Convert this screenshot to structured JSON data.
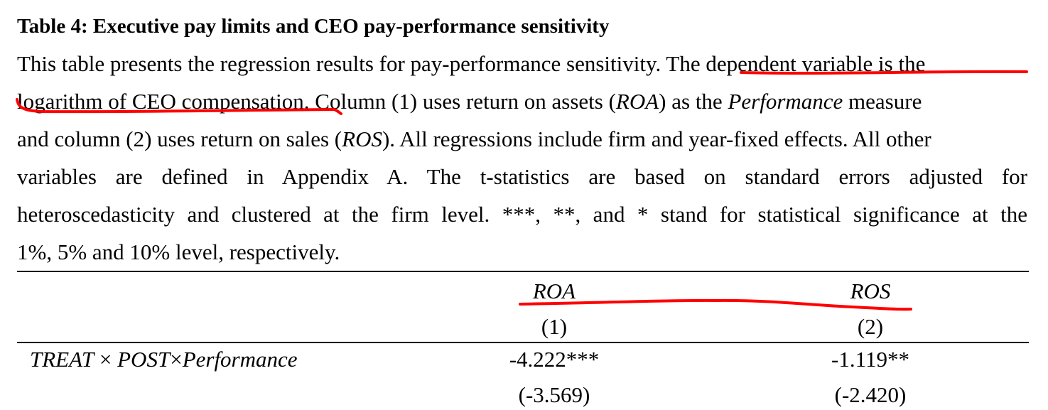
{
  "table": {
    "title": "Table 4: Executive pay limits and CEO pay-performance sensitivity",
    "caption": {
      "line1_a": "This table presents the regression results for pay-performance sensitivity. ",
      "line1_b": "The dependent variable is the",
      "line2_a": "logarithm of CEO compensation.",
      "line2_b": " Column (1) uses return on assets (",
      "line2_c": "ROA",
      "line2_d": ") as the ",
      "line2_e": "Performance",
      "line2_f": " measure",
      "line3_a": "and column (2) uses return on sales (",
      "line3_b": "ROS",
      "line3_c": "). All regressions include firm and year-fixed effects. All other",
      "line4": "variables are defined in Appendix A. The t-statistics are based on standard errors adjusted for",
      "line5": "heteroscedasticity and clustered at the firm level. ***, **, and * stand for statistical significance at the",
      "line6": "1%, 5% and 10% level, respectively."
    },
    "columns": [
      {
        "header": "ROA",
        "number": "(1)"
      },
      {
        "header": "ROS",
        "number": "(2)"
      }
    ],
    "rows": [
      {
        "label_a": "TREAT",
        "label_times1": " × ",
        "label_b": "POST",
        "label_times2": "×",
        "label_c": "Performance",
        "values": [
          "-4.222***",
          "-1.119**"
        ],
        "tstats": [
          "(-3.569)",
          "(-2.420)"
        ]
      }
    ]
  },
  "annotations": {
    "highlight_color": "#ff0000",
    "marks": [
      "underline-dependent-variable",
      "underline-column-headers"
    ]
  }
}
